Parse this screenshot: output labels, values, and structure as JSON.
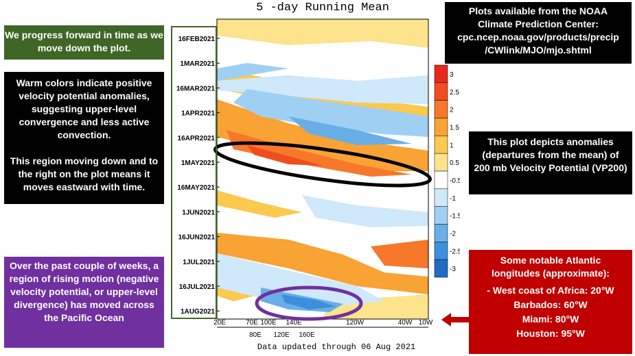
{
  "title": "5 -day Running Mean",
  "footer": "Data updated through 06 Aug 2021",
  "annotations": {
    "intro": "We progress forward in time as we move down the plot.",
    "warm_colors": "Warm colors indicate positive velocity potential anomalies, suggesting upper-level convergence and less active convection.",
    "moving": "This region moving down and to the right on the plot means it moves eastward with time.",
    "pacific": "Over the past couple of weeks, a region of rising motion (negative velocity potential, or upper-level divergence) has moved across the Pacific Ocean",
    "source": {
      "line1": "Plots available from the NOAA",
      "line2": "Climate Prediction Center:",
      "line3": "cpc.ncep.noaa.gov/products/precip",
      "line4": "/CWlink/MJO/mjo.shtml"
    },
    "anomalies": "This plot depicts anomalies (departures from the mean) of 200 mb Velocity Potential (VP200)",
    "atlantic": {
      "heading": "Some notable Atlantic longitudes (approximate):",
      "items": [
        "-   West coast of Africa: 20°W",
        "Barbados: 60°W",
        "Miami: 80°W",
        "Houston: 95°W"
      ]
    }
  },
  "chart_data": {
    "type": "heatmap",
    "title": "5 -day Running Mean",
    "y_ticks": [
      "16FEB2021",
      "1MAR2021",
      "16MAR2021",
      "1APR2021",
      "16APR2021",
      "1MAY2021",
      "16MAY2021",
      "1JUN2021",
      "16JUN2021",
      "1JUL2021",
      "16JUL2021",
      "1AUG2021"
    ],
    "x_ticks_top": [
      "20E",
      "70E",
      "100E",
      "140E",
      "120W",
      "40W",
      "10W"
    ],
    "x_ticks_bottom": [
      "80E",
      "120E",
      "160E"
    ],
    "colorbar": {
      "levels": [
        "3",
        "2.5",
        "2",
        "1.5",
        "1",
        "0.5",
        "-0.5",
        "-1",
        "-1.5",
        "-2",
        "-2.5",
        "-3"
      ],
      "colors": [
        "#e8281e",
        "#f24b1e",
        "#f7782a",
        "#f9a334",
        "#fbc94e",
        "#fde38c",
        "#ffffff",
        "#cfe8fa",
        "#9fd0f4",
        "#68afe7",
        "#3d8fdb",
        "#1f6cc6"
      ]
    },
    "highlights": [
      {
        "label": "positive anomaly band",
        "period": "1MAY2021",
        "color": "#000000"
      },
      {
        "label": "negative anomaly region",
        "period": "1AUG2021",
        "color": "#7030a0"
      }
    ]
  }
}
